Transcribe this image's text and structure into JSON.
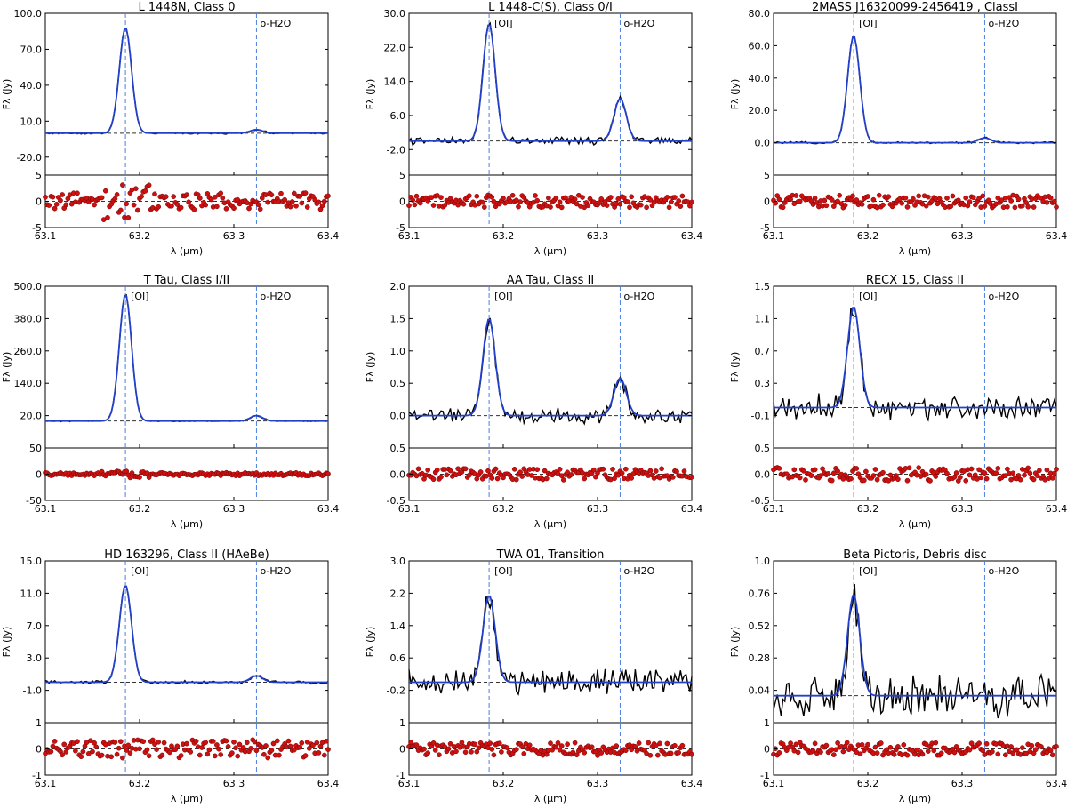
{
  "figure": {
    "x_axis_label": "λ (μm)",
    "y_axis_label": "Fλ (Jy)",
    "line_labels": {
      "oi": "[OI]",
      "h2o": "o-H2O"
    },
    "colors": {
      "observed": "#000000",
      "model": "#2340c8",
      "marker_line": "#4a80e0",
      "residual": "#cc1111",
      "residual_edge": "#7a0000"
    }
  },
  "chart_data": [
    {
      "type": "line",
      "title": "L 1448N, Class 0",
      "ylim": [
        -35,
        100
      ],
      "yticks": [
        "100.0",
        "70.0",
        "40.0",
        "10.0",
        "-20.0"
      ],
      "ytick_values": [
        100,
        70,
        40,
        10,
        -20
      ],
      "baseline": 0,
      "oi_peak": 88,
      "h2o_peak": 3,
      "obs_noise": 0.6,
      "show_oi_label": false,
      "show_h2o_label": true,
      "res_lim": [
        -5,
        5
      ],
      "res_ticks": [
        "5",
        "0",
        "-5"
      ],
      "res_tick_values": [
        5,
        0,
        -5
      ],
      "res_amp": 1.6,
      "res_spikes": true,
      "xlim": [
        63.1,
        63.4
      ],
      "xticks": [
        "63.1",
        "63.2",
        "63.3",
        "63.4"
      ],
      "oi_center": 63.185,
      "h2o_center": 63.324
    },
    {
      "type": "line",
      "title": "L 1448-C(S), Class 0/I",
      "ylim": [
        -8,
        30
      ],
      "yticks": [
        "30.0",
        "22.0",
        "14.0",
        "6.0",
        "-2.0"
      ],
      "ytick_values": [
        30,
        22,
        14,
        6,
        -2
      ],
      "baseline": 0,
      "oi_peak": 27.5,
      "h2o_peak": 10,
      "obs_noise": 0.7,
      "show_oi_label": true,
      "show_h2o_label": true,
      "res_lim": [
        -5,
        5
      ],
      "res_ticks": [
        "5",
        "0",
        "-5"
      ],
      "res_tick_values": [
        5,
        0,
        -5
      ],
      "res_amp": 1.2,
      "res_spikes": false,
      "xlim": [
        63.1,
        63.4
      ],
      "xticks": [
        "63.1",
        "63.2",
        "63.3",
        "63.4"
      ],
      "oi_center": 63.185,
      "h2o_center": 63.324
    },
    {
      "type": "line",
      "title": "2MASS J16320099-2456419 , ClassI",
      "ylim": [
        -20,
        80
      ],
      "yticks": [
        "80.0",
        "60.0",
        "40.0",
        "20.0",
        "0.0"
      ],
      "ytick_values": [
        80,
        60,
        40,
        20,
        0
      ],
      "baseline": 0,
      "oi_peak": 66,
      "h2o_peak": 3,
      "obs_noise": 0.5,
      "show_oi_label": true,
      "show_h2o_label": true,
      "res_lim": [
        -5,
        5
      ],
      "res_ticks": [
        "5",
        "0",
        "-5"
      ],
      "res_tick_values": [
        5,
        0,
        -5
      ],
      "res_amp": 1.2,
      "res_spikes": false,
      "xlim": [
        63.1,
        63.4
      ],
      "xticks": [
        "63.1",
        "63.2",
        "63.3",
        "63.4"
      ],
      "oi_center": 63.185,
      "h2o_center": 63.324
    },
    {
      "type": "line",
      "title": "T Tau, Class I/II",
      "ylim": [
        -100,
        500
      ],
      "yticks": [
        "500.0",
        "380.0",
        "260.0",
        "140.0",
        "20.0"
      ],
      "ytick_values": [
        500,
        380,
        260,
        140,
        20
      ],
      "baseline": 0,
      "oi_peak": 470,
      "h2o_peak": 20,
      "obs_noise": 2.0,
      "show_oi_label": true,
      "show_h2o_label": true,
      "res_lim": [
        -50,
        50
      ],
      "res_ticks": [
        "50",
        "0",
        "-50"
      ],
      "res_tick_values": [
        50,
        0,
        -50
      ],
      "res_amp": 3,
      "res_spikes": true,
      "xlim": [
        63.1,
        63.4
      ],
      "xticks": [
        "63.1",
        "63.2",
        "63.3",
        "63.4"
      ],
      "oi_center": 63.185,
      "h2o_center": 63.324
    },
    {
      "type": "line",
      "title": "AA Tau, Class II",
      "ylim": [
        -0.5,
        2.0
      ],
      "yticks": [
        "2.0",
        "1.5",
        "1.0",
        "0.5",
        "0.0"
      ],
      "ytick_values": [
        2.0,
        1.5,
        1.0,
        0.5,
        0.0
      ],
      "baseline": 0,
      "oi_peak": 1.5,
      "h2o_peak": 0.58,
      "obs_noise": 0.09,
      "show_oi_label": true,
      "show_h2o_label": true,
      "res_lim": [
        -0.5,
        0.5
      ],
      "res_ticks": [
        "0.5",
        "0.0",
        "-0.5"
      ],
      "res_tick_values": [
        0.5,
        0,
        -0.5
      ],
      "res_amp": 0.11,
      "res_spikes": false,
      "xlim": [
        63.1,
        63.4
      ],
      "xticks": [
        "63.1",
        "63.2",
        "63.3",
        "63.4"
      ],
      "oi_center": 63.185,
      "h2o_center": 63.324
    },
    {
      "type": "line",
      "title": "RECX 15, Class II",
      "ylim": [
        -0.5,
        1.5
      ],
      "yticks": [
        "1.5",
        "1.1",
        "0.7",
        "0.3",
        "-0.1"
      ],
      "ytick_values": [
        1.5,
        1.1,
        0.7,
        0.3,
        -0.1
      ],
      "baseline": 0,
      "oi_peak": 1.25,
      "h2o_peak": 0,
      "obs_noise": 0.12,
      "show_oi_label": true,
      "show_h2o_label": true,
      "res_lim": [
        -0.5,
        0.5
      ],
      "res_ticks": [
        "0.5",
        "0.0",
        "-0.5"
      ],
      "res_tick_values": [
        0.5,
        0,
        -0.5
      ],
      "res_amp": 0.13,
      "res_spikes": false,
      "xlim": [
        63.1,
        63.4
      ],
      "xticks": [
        "63.1",
        "63.2",
        "63.3",
        "63.4"
      ],
      "oi_center": 63.185,
      "h2o_center": 63.324
    },
    {
      "type": "line",
      "title": "HD 163296, Class II (HAeBe)",
      "ylim": [
        -5,
        15
      ],
      "yticks": [
        "15.0",
        "11.0",
        "7.0",
        "3.0",
        "-1.0"
      ],
      "ytick_values": [
        15,
        11,
        7,
        3,
        -1
      ],
      "baseline": 0,
      "oi_peak": 12,
      "h2o_peak": 0.8,
      "obs_noise": 0.15,
      "show_oi_label": true,
      "show_h2o_label": true,
      "res_lim": [
        -1,
        1
      ],
      "res_ticks": [
        "1",
        "0",
        "-1"
      ],
      "res_tick_values": [
        1,
        0,
        -1
      ],
      "res_amp": 0.35,
      "res_spikes": false,
      "xlim": [
        63.1,
        63.4
      ],
      "xticks": [
        "63.1",
        "63.2",
        "63.3",
        "63.4"
      ],
      "oi_center": 63.185,
      "h2o_center": 63.324
    },
    {
      "type": "line",
      "title": "TWA 01, Transition",
      "ylim": [
        -1.0,
        3.0
      ],
      "yticks": [
        "3.0",
        "2.2",
        "1.4",
        "0.6",
        "-0.2"
      ],
      "ytick_values": [
        3.0,
        2.2,
        1.4,
        0.6,
        -0.2
      ],
      "baseline": 0,
      "oi_peak": 2.15,
      "h2o_peak": 0,
      "obs_noise": 0.25,
      "show_oi_label": true,
      "show_h2o_label": true,
      "res_lim": [
        -1,
        1
      ],
      "res_ticks": [
        "1",
        "0",
        "-1"
      ],
      "res_tick_values": [
        1,
        0,
        -1
      ],
      "res_amp": 0.25,
      "res_spikes": false,
      "xlim": [
        63.1,
        63.4
      ],
      "xticks": [
        "63.1",
        "63.2",
        "63.3",
        "63.4"
      ],
      "oi_center": 63.185,
      "h2o_center": 63.324
    },
    {
      "type": "line",
      "title": "Beta Pictoris, Debris disc",
      "ylim": [
        -0.2,
        1.0
      ],
      "yticks": [
        "1.0",
        "0.76",
        "0.52",
        "0.28",
        "0.04"
      ],
      "ytick_values": [
        1.0,
        0.76,
        0.52,
        0.28,
        0.04
      ],
      "baseline": 0,
      "oi_peak": 0.75,
      "h2o_peak": 0,
      "obs_noise": 0.12,
      "show_oi_label": true,
      "show_h2o_label": true,
      "res_lim": [
        -1,
        1
      ],
      "res_ticks": [
        "1",
        "0",
        "-1"
      ],
      "res_tick_values": [
        1,
        0,
        -1
      ],
      "res_amp": 0.25,
      "res_spikes": false,
      "xlim": [
        63.1,
        63.4
      ],
      "xticks": [
        "63.1",
        "63.2",
        "63.3",
        "63.4"
      ],
      "oi_center": 63.185,
      "h2o_center": 63.324
    }
  ]
}
